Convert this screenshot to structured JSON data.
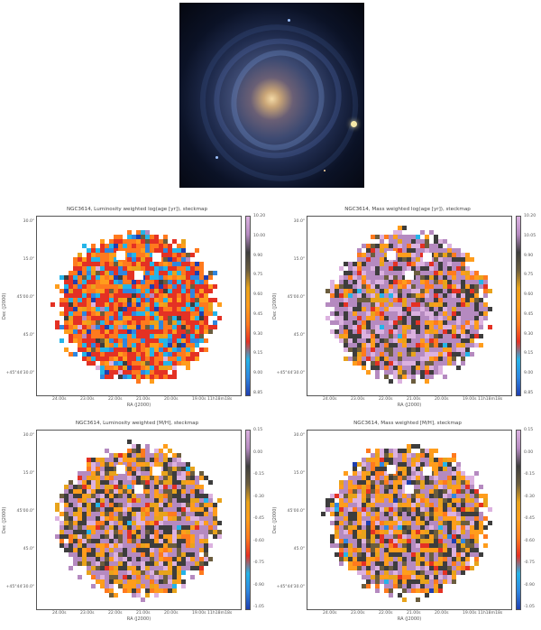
{
  "figure": {
    "panels": [
      {
        "id": "lw-age",
        "title": "NGC3614, Luminosity weighted log(age [yr]), steckmap",
        "colorbar_ticks": [
          "10.20",
          "10.00",
          "9.90",
          "9.75",
          "9.60",
          "9.45",
          "9.30",
          "9.15",
          "9.00",
          "8.85"
        ],
        "palette": [
          "#1f3fb0",
          "#2f86e0",
          "#25b4e8",
          "#e43124",
          "#ff7a1e",
          "#ff9d1c",
          "#e8a31b",
          "#6b5d3e",
          "#3d3d3d",
          "#b58ac0",
          "#dcb2e0"
        ],
        "cell_weights": [
          3,
          8,
          10,
          34,
          24,
          9,
          5,
          3,
          2,
          1,
          1
        ]
      },
      {
        "id": "mw-age",
        "title": "NGC3614, Mass weighted log(age [yr]), steckmap",
        "colorbar_ticks": [
          "10.20",
          "10.05",
          "9.90",
          "9.75",
          "9.60",
          "9.45",
          "9.30",
          "9.15",
          "9.00",
          "8.85"
        ],
        "palette": [
          "#1f3fb0",
          "#2f86e0",
          "#25b4e8",
          "#e43124",
          "#ff7a1e",
          "#ff9d1c",
          "#e8a31b",
          "#6b5d3e",
          "#3d3d3d",
          "#b58ac0",
          "#dcb2e0"
        ],
        "cell_weights": [
          0,
          0,
          1,
          5,
          6,
          10,
          6,
          6,
          18,
          34,
          14
        ]
      },
      {
        "id": "lw-metal",
        "title": "NGC3614, Luminosity weighted [M/H], steckmap",
        "colorbar_ticks": [
          "0.15",
          "0.00",
          "-0.15",
          "-0.30",
          "-0.45",
          "-0.60",
          "-0.75",
          "-0.90",
          "-1.05"
        ],
        "palette": [
          "#1f3fb0",
          "#2f86e0",
          "#25b4e8",
          "#e43124",
          "#ff7a1e",
          "#ff9d1c",
          "#e8a31b",
          "#6b5d3e",
          "#3d3d3d",
          "#b58ac0",
          "#dcb2e0"
        ],
        "cell_weights": [
          0,
          0,
          1,
          3,
          6,
          14,
          10,
          10,
          18,
          28,
          10
        ]
      },
      {
        "id": "mw-metal",
        "title": "NGC3614, Mass weighted [M/H], steckmap",
        "colorbar_ticks": [
          "0.15",
          "0.00",
          "-0.15",
          "-0.30",
          "-0.45",
          "-0.60",
          "-0.75",
          "-0.90",
          "-1.05"
        ],
        "palette": [
          "#1f3fb0",
          "#2f86e0",
          "#25b4e8",
          "#e43124",
          "#ff7a1e",
          "#ff9d1c",
          "#e8a31b",
          "#6b5d3e",
          "#3d3d3d",
          "#b58ac0",
          "#dcb2e0"
        ],
        "cell_weights": [
          1,
          1,
          1,
          4,
          7,
          16,
          10,
          10,
          18,
          24,
          8
        ]
      }
    ],
    "y_ticks": [
      "30.0\"",
      "15.0\"",
      "45'00.0\"",
      "45.0\"",
      "+45°44'30.0\""
    ],
    "x_ticks": [
      "24.00s",
      "23.00s",
      "22.00s",
      "21.00s",
      "20.00s",
      "19.00s 11h18m18s"
    ],
    "xlabel": "RA (J2000)",
    "ylabel": "Dec (J2000)",
    "colorbar_gradient": [
      "#1f3fb0",
      "#2f86e0",
      "#25b4e8",
      "#e43124",
      "#ff7a1e",
      "#ff9d1c",
      "#e8a31b",
      "#6b5d3e",
      "#3d3d3d",
      "#b58ac0",
      "#dcb2e0"
    ]
  }
}
